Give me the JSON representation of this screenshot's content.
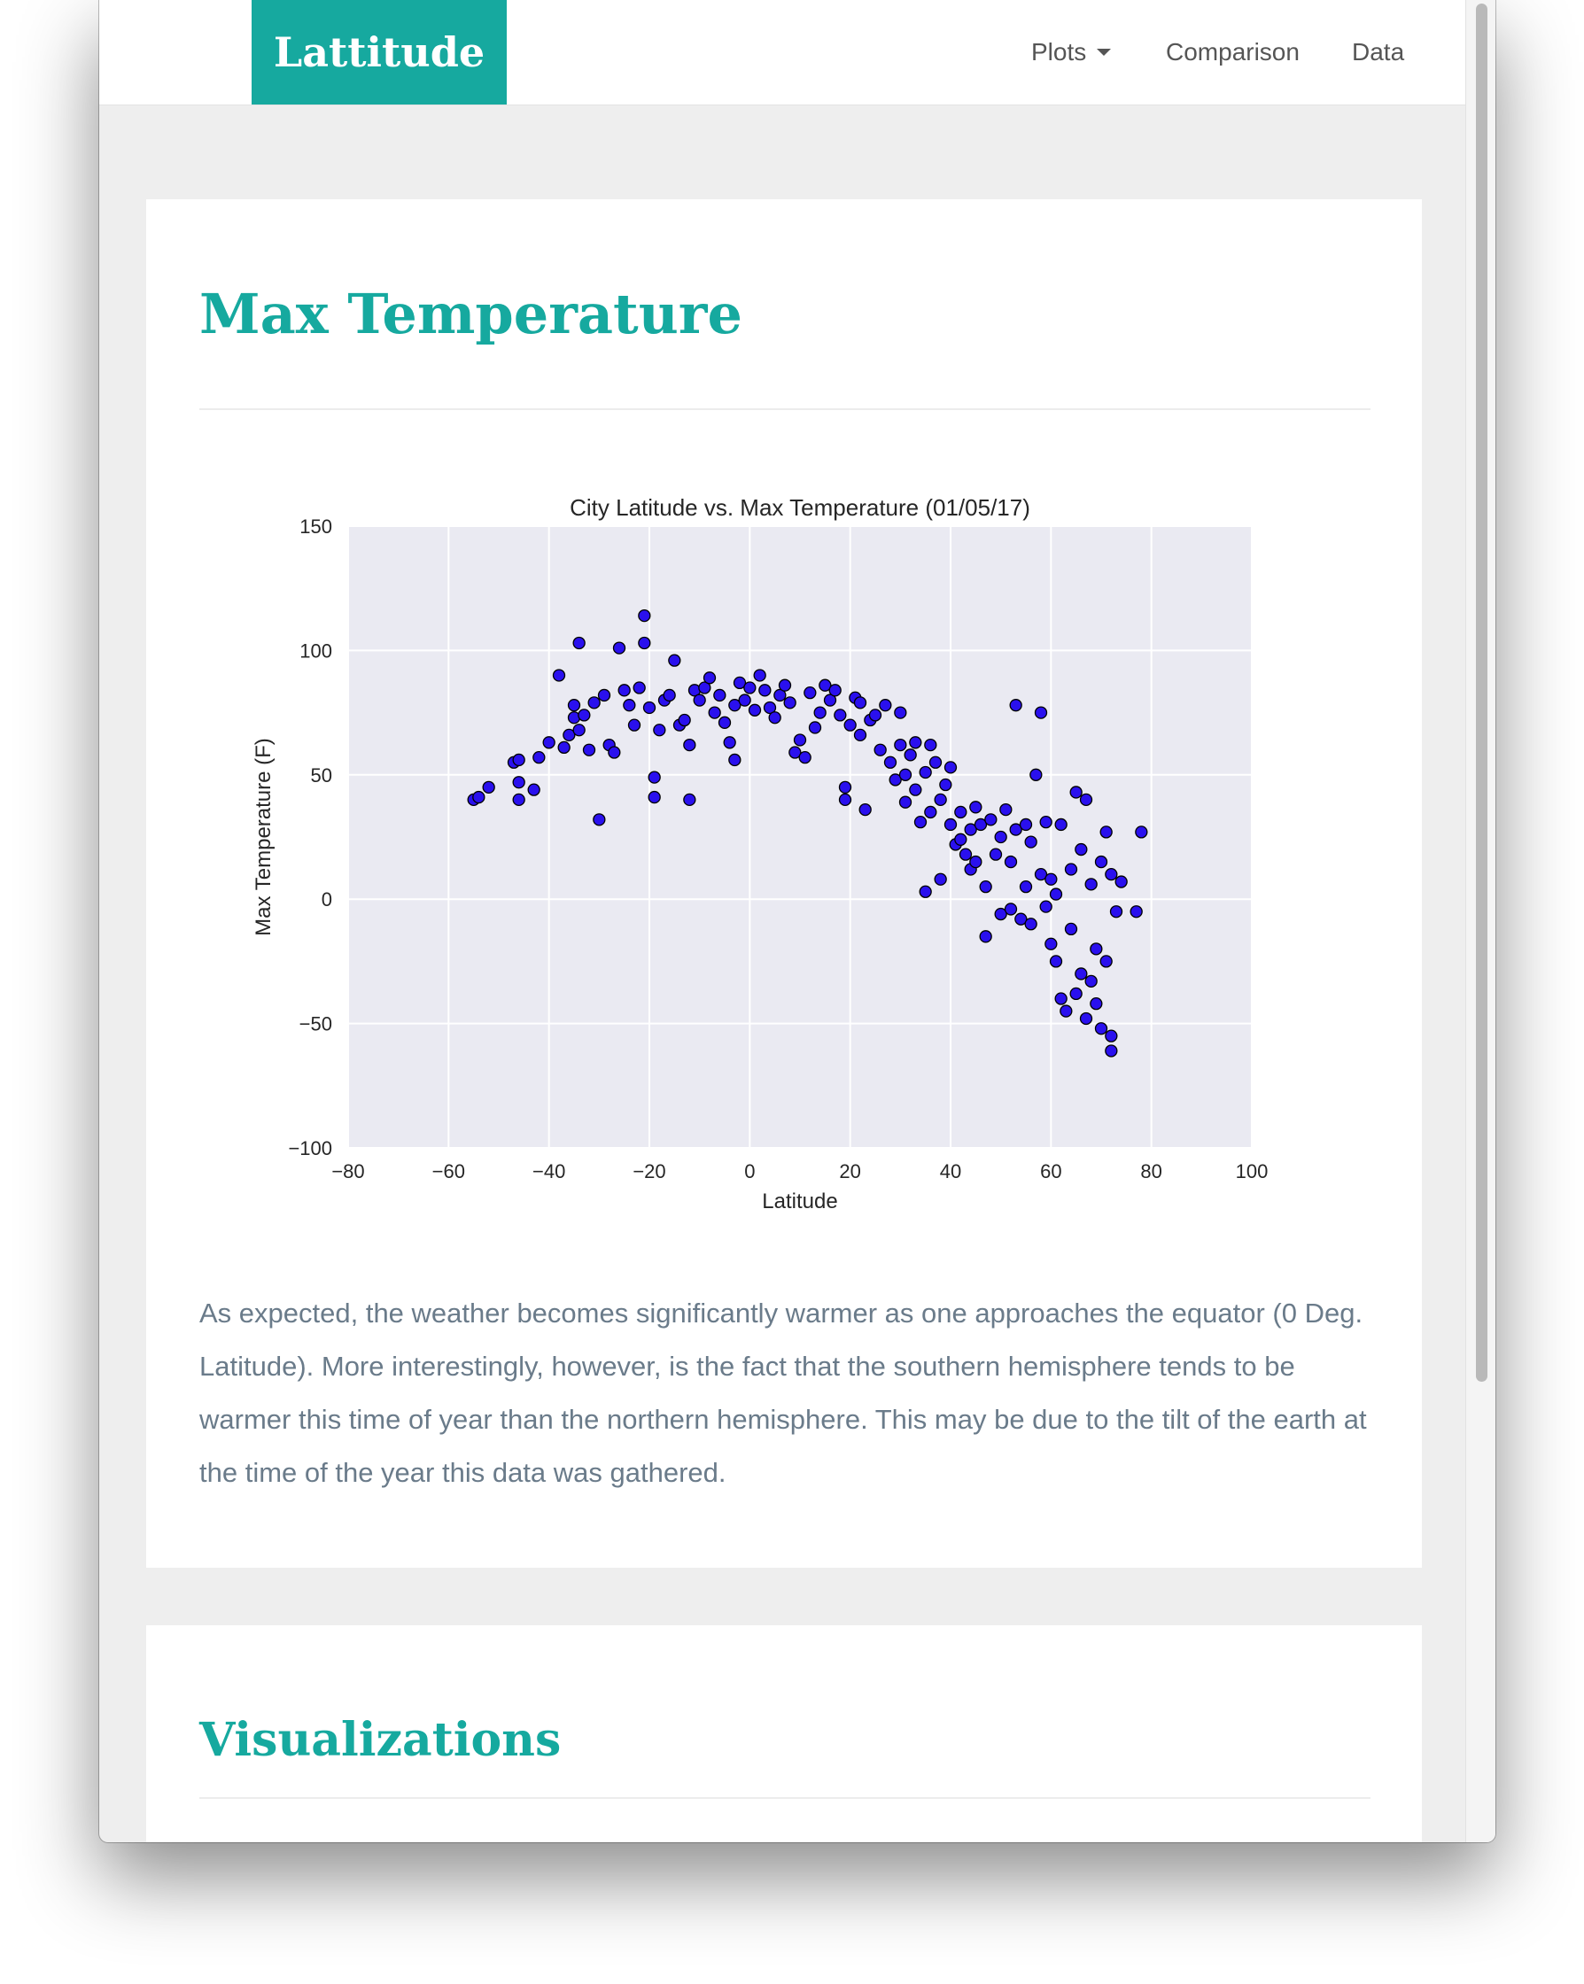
{
  "navbar": {
    "brand": "Lattitude",
    "items": [
      {
        "label": "Plots",
        "dropdown": true
      },
      {
        "label": "Comparison"
      },
      {
        "label": "Data"
      }
    ]
  },
  "colors": {
    "accent": "#16a99f",
    "marker": "#2a10ee",
    "plot_bg": "#eaeaf2",
    "text_muted": "#6a7b8a"
  },
  "main": {
    "title": "Max Temperature",
    "description": "As expected, the weather becomes significantly warmer as one approaches the equator (0 Deg. Latitude). More interestingly, however, is the fact that the southern hemisphere tends to be warmer this time of year than the northern hemisphere. This may be due to the tilt of the earth at the time of the year this data was gathered."
  },
  "secondary": {
    "title": "Visualizations"
  },
  "chart_data": {
    "type": "scatter",
    "title": "City Latitude vs. Max Temperature (01/05/17)",
    "xlabel": "Latitude",
    "ylabel": "Max Temperature (F)",
    "xlim": [
      -80,
      100
    ],
    "ylim": [
      -100,
      150
    ],
    "x_ticks": [
      -80,
      -60,
      -40,
      -20,
      0,
      20,
      40,
      60,
      80,
      100
    ],
    "y_ticks": [
      -100,
      -50,
      0,
      50,
      100,
      150
    ],
    "x_tick_labels": [
      "−80",
      "−60",
      "−40",
      "−20",
      "0",
      "20",
      "40",
      "60",
      "80",
      "100"
    ],
    "y_tick_labels": [
      "−100",
      "−50",
      "0",
      "50",
      "100",
      "150"
    ],
    "grid": true,
    "points": [
      [
        -55,
        40
      ],
      [
        -54,
        41
      ],
      [
        -52,
        45
      ],
      [
        -47,
        55
      ],
      [
        -46,
        56
      ],
      [
        -46,
        47
      ],
      [
        -46,
        40
      ],
      [
        -43,
        44
      ],
      [
        -42,
        57
      ],
      [
        -40,
        63
      ],
      [
        -38,
        90
      ],
      [
        -37,
        61
      ],
      [
        -36,
        66
      ],
      [
        -35,
        73
      ],
      [
        -35,
        78
      ],
      [
        -34,
        103
      ],
      [
        -34,
        68
      ],
      [
        -33,
        74
      ],
      [
        -32,
        60
      ],
      [
        -31,
        79
      ],
      [
        -30,
        32
      ],
      [
        -29,
        82
      ],
      [
        -28,
        62
      ],
      [
        -27,
        59
      ],
      [
        -26,
        101
      ],
      [
        -25,
        84
      ],
      [
        -24,
        78
      ],
      [
        -23,
        70
      ],
      [
        -22,
        85
      ],
      [
        -21,
        114
      ],
      [
        -21,
        103
      ],
      [
        -20,
        77
      ],
      [
        -19,
        49
      ],
      [
        -19,
        41
      ],
      [
        -18,
        68
      ],
      [
        -17,
        80
      ],
      [
        -16,
        82
      ],
      [
        -15,
        96
      ],
      [
        -14,
        70
      ],
      [
        -13,
        72
      ],
      [
        -12,
        40
      ],
      [
        -12,
        62
      ],
      [
        -11,
        84
      ],
      [
        -10,
        80
      ],
      [
        -9,
        85
      ],
      [
        -8,
        89
      ],
      [
        -7,
        75
      ],
      [
        -6,
        82
      ],
      [
        -5,
        71
      ],
      [
        -4,
        63
      ],
      [
        -3,
        56
      ],
      [
        -3,
        78
      ],
      [
        -2,
        87
      ],
      [
        -1,
        80
      ],
      [
        0,
        85
      ],
      [
        1,
        76
      ],
      [
        2,
        90
      ],
      [
        3,
        84
      ],
      [
        4,
        77
      ],
      [
        5,
        73
      ],
      [
        6,
        82
      ],
      [
        7,
        86
      ],
      [
        8,
        79
      ],
      [
        9,
        59
      ],
      [
        10,
        64
      ],
      [
        11,
        57
      ],
      [
        12,
        83
      ],
      [
        13,
        69
      ],
      [
        14,
        75
      ],
      [
        15,
        86
      ],
      [
        16,
        80
      ],
      [
        17,
        84
      ],
      [
        18,
        74
      ],
      [
        19,
        45
      ],
      [
        19,
        40
      ],
      [
        20,
        70
      ],
      [
        21,
        81
      ],
      [
        22,
        79
      ],
      [
        22,
        66
      ],
      [
        23,
        36
      ],
      [
        24,
        72
      ],
      [
        25,
        74
      ],
      [
        26,
        60
      ],
      [
        27,
        78
      ],
      [
        28,
        55
      ],
      [
        29,
        48
      ],
      [
        30,
        62
      ],
      [
        30,
        75
      ],
      [
        31,
        50
      ],
      [
        31,
        39
      ],
      [
        32,
        58
      ],
      [
        33,
        63
      ],
      [
        33,
        44
      ],
      [
        34,
        31
      ],
      [
        35,
        51
      ],
      [
        35,
        3
      ],
      [
        36,
        62
      ],
      [
        36,
        35
      ],
      [
        37,
        55
      ],
      [
        38,
        40
      ],
      [
        38,
        8
      ],
      [
        39,
        46
      ],
      [
        40,
        30
      ],
      [
        40,
        53
      ],
      [
        41,
        22
      ],
      [
        42,
        35
      ],
      [
        42,
        24
      ],
      [
        43,
        18
      ],
      [
        44,
        28
      ],
      [
        44,
        12
      ],
      [
        45,
        15
      ],
      [
        45,
        37
      ],
      [
        46,
        30
      ],
      [
        47,
        5
      ],
      [
        47,
        -15
      ],
      [
        48,
        32
      ],
      [
        49,
        18
      ],
      [
        50,
        25
      ],
      [
        50,
        -6
      ],
      [
        51,
        36
      ],
      [
        52,
        -4
      ],
      [
        52,
        15
      ],
      [
        53,
        78
      ],
      [
        53,
        28
      ],
      [
        54,
        -8
      ],
      [
        55,
        30
      ],
      [
        55,
        5
      ],
      [
        56,
        23
      ],
      [
        56,
        -10
      ],
      [
        57,
        50
      ],
      [
        58,
        75
      ],
      [
        58,
        10
      ],
      [
        59,
        -3
      ],
      [
        59,
        31
      ],
      [
        60,
        -18
      ],
      [
        60,
        8
      ],
      [
        61,
        -25
      ],
      [
        61,
        2
      ],
      [
        62,
        -40
      ],
      [
        62,
        30
      ],
      [
        63,
        -45
      ],
      [
        64,
        -12
      ],
      [
        64,
        12
      ],
      [
        65,
        -38
      ],
      [
        65,
        43
      ],
      [
        66,
        -30
      ],
      [
        66,
        20
      ],
      [
        67,
        -48
      ],
      [
        67,
        40
      ],
      [
        68,
        -33
      ],
      [
        68,
        6
      ],
      [
        69,
        -42
      ],
      [
        69,
        -20
      ],
      [
        70,
        -52
      ],
      [
        70,
        15
      ],
      [
        71,
        -25
      ],
      [
        71,
        27
      ],
      [
        72,
        -55
      ],
      [
        72,
        -61
      ],
      [
        72,
        10
      ],
      [
        73,
        -5
      ],
      [
        74,
        7
      ],
      [
        77,
        -5
      ],
      [
        78,
        27
      ]
    ]
  }
}
